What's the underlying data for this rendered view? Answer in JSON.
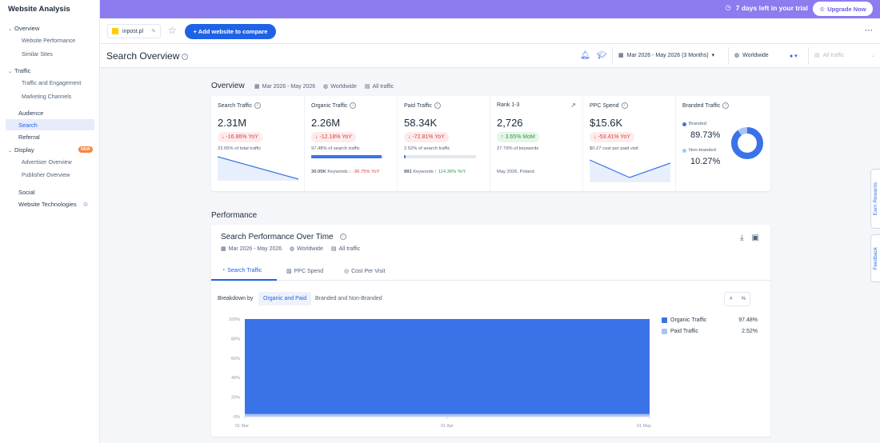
{
  "sidebar": {
    "title": "Website Analysis",
    "overview": "Overview",
    "website_performance": "Website Performance",
    "similar_sites": "Similar Sites",
    "traffic": "Traffic",
    "traffic_engagement": "Traffic and Engagement",
    "marketing_channels": "Marketing Channels",
    "audience": "Audience",
    "search": "Search",
    "referral": "Referral",
    "display": "Display",
    "new_badge": "NEW",
    "advertiser_overview": "Advertiser Overview",
    "publisher_overview": "Publisher Overview",
    "social": "Social",
    "website_technologies": "Website Technologies"
  },
  "topbar": {
    "trial_text": "7 days left in your trial",
    "upgrade_label": "Upgrade Now"
  },
  "subbar": {
    "site": "inpost.pl",
    "add_label": "+ Add website to compare"
  },
  "header": {
    "title": "Search Overview",
    "date_range": "Mar 2026 - May 2026 (3 Months)",
    "geo": "Worldwide",
    "traffic_filter": "All traffic"
  },
  "overview": {
    "heading": "Overview",
    "date": "Mar 2026 - May 2026",
    "geo": "Worldwide",
    "traffic": "All traffic"
  },
  "kpis": {
    "search": {
      "label": "Search Traffic",
      "value": "2.31M",
      "change": "↓ -16.86% YoY",
      "sub": "22.05% of total traffic"
    },
    "organic": {
      "label": "Organic Traffic",
      "value": "2.26M",
      "change": "↓ -12.18% YoY",
      "sub": "97.48% of search traffic",
      "share": 97.48,
      "keywords_count": "30.05K",
      "keywords_word": "Keywords",
      "keywords_change": "↓ -36.75% YoY"
    },
    "paid": {
      "label": "Paid Traffic",
      "value": "58.34K",
      "change": "↓ -72.81% YoY",
      "sub": "2.52% of search traffic",
      "share": 2.52,
      "keywords_count": "881",
      "keywords_word": "Keywords",
      "keywords_change": "↑ 114.36% YoY"
    },
    "rank": {
      "label": "Rank 1-3",
      "value": "2,726",
      "change": "↑ 3.65% MoM",
      "sub": "27.79% of keywords",
      "foot": "May 2026, Poland"
    },
    "ppc": {
      "label": "PPC Spend",
      "value": "$15.6K",
      "change": "↓ -53.41% YoY",
      "sub": "$0.27 cost per paid visit"
    },
    "branded": {
      "label": "Branded Traffic",
      "branded_label": "Branded",
      "branded_value": "89.73%",
      "nonbranded_label": "Non-branded",
      "nonbranded_value": "10.27%",
      "branded_share": 89.73
    }
  },
  "performance": {
    "heading": "Performance",
    "title": "Search Performance Over Time",
    "date": "Mar 2026 - May 2026",
    "geo": "Worldwide",
    "traffic": "All traffic",
    "tabs": [
      "Search Traffic",
      "PPC Spend",
      "Cost Per Visit"
    ],
    "breakdown_label": "Breakdown by",
    "breakdown_options": [
      "Organic and Paid",
      "Branded and Non-Branded"
    ],
    "toggle": [
      "#",
      "%"
    ],
    "legend": [
      {
        "name": "Organic Traffic",
        "value": "97.48%"
      },
      {
        "name": "Paid Traffic",
        "value": "2.52%"
      }
    ]
  },
  "rails": {
    "rewards": "Earn Rewards",
    "feedback": "Feedback"
  },
  "colors": {
    "accent": "#1f62e6",
    "organic": "#3a72e8",
    "paid": "#a9c3f5",
    "topbar": "#8b7cef"
  },
  "chart_data": {
    "type": "area",
    "x": [
      "01 Mar",
      "01 Apr",
      "01 May"
    ],
    "y_ticks": [
      "100%",
      "80%",
      "60%",
      "40%",
      "20%",
      "0%"
    ],
    "ylim": [
      0,
      100
    ],
    "series": [
      {
        "name": "Organic Traffic",
        "values": [
          97.48,
          97.48,
          97.48
        ]
      },
      {
        "name": "Paid Traffic",
        "values": [
          2.52,
          2.52,
          2.52
        ]
      }
    ]
  }
}
